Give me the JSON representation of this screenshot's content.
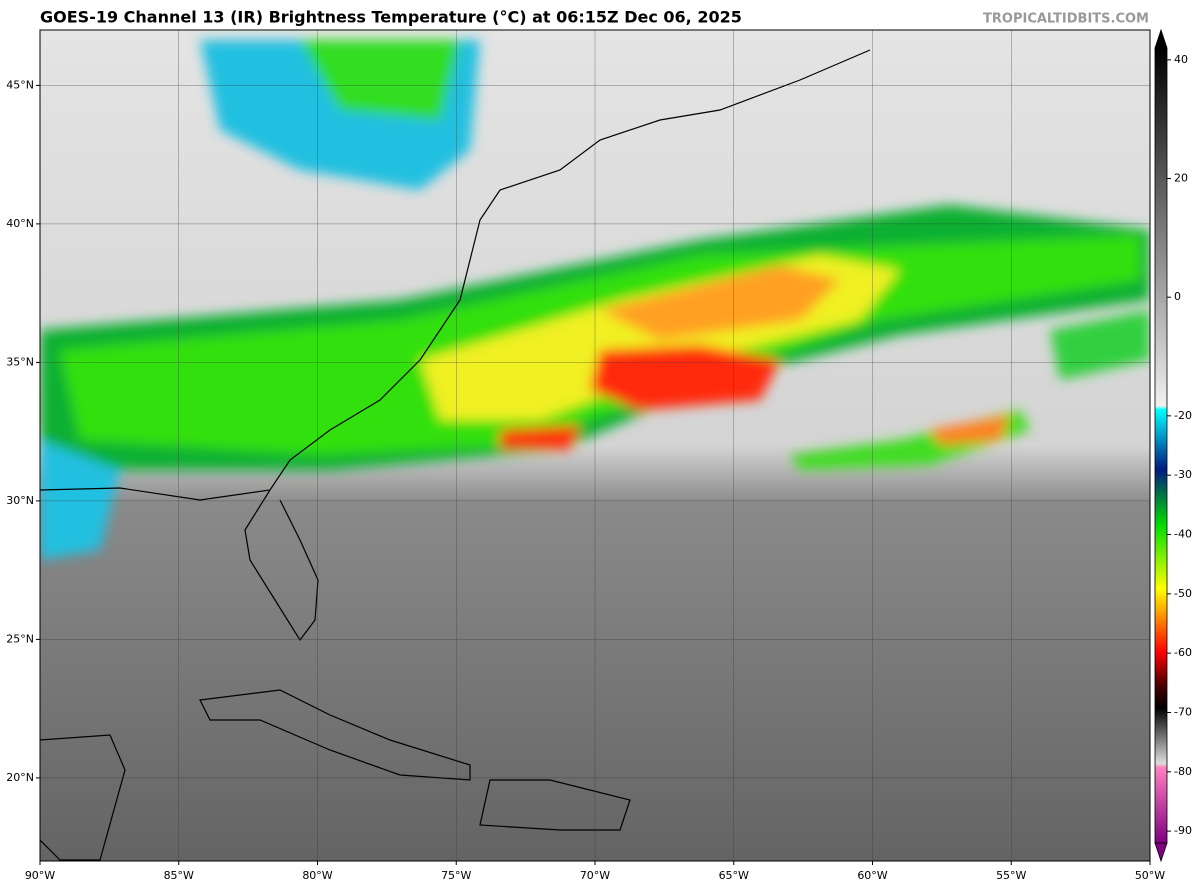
{
  "header": {
    "title": "GOES-19 Channel 13 (IR) Brightness Temperature (°C) at 06:15Z Dec 06, 2025",
    "credit": "TROPICALTIDBITS.COM"
  },
  "map": {
    "xlim": [
      -90,
      -50
    ],
    "ylim": [
      17,
      47
    ],
    "xticks": [
      {
        "value": -90,
        "label": "90°W"
      },
      {
        "value": -85,
        "label": "85°W"
      },
      {
        "value": -80,
        "label": "80°W"
      },
      {
        "value": -75,
        "label": "75°W"
      },
      {
        "value": -70,
        "label": "70°W"
      },
      {
        "value": -65,
        "label": "65°W"
      },
      {
        "value": -60,
        "label": "60°W"
      },
      {
        "value": -55,
        "label": "55°W"
      },
      {
        "value": -50,
        "label": "50°W"
      }
    ],
    "yticks": [
      {
        "value": 20,
        "label": "20°N"
      },
      {
        "value": 25,
        "label": "25°N"
      },
      {
        "value": 30,
        "label": "30°N"
      },
      {
        "value": 35,
        "label": "35°N"
      },
      {
        "value": 40,
        "label": "40°N"
      },
      {
        "value": 45,
        "label": "45°N"
      }
    ],
    "grid": true
  },
  "colorbar": {
    "lim": [
      -92,
      42
    ],
    "ticks": [
      40,
      20,
      0,
      -20,
      -30,
      -40,
      -50,
      -60,
      -70,
      -80,
      -90
    ]
  }
}
